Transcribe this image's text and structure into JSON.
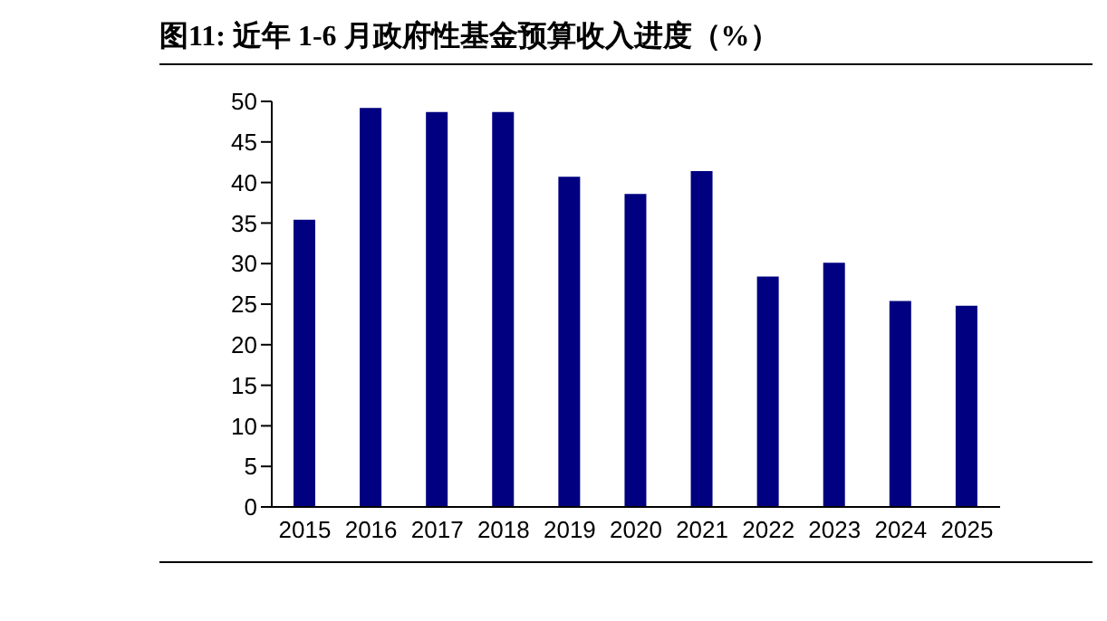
{
  "chart_data": {
    "type": "bar",
    "title": "图11:  近年 1-6 月政府性基金预算收入进度（%）",
    "categories": [
      "2015",
      "2016",
      "2017",
      "2018",
      "2019",
      "2020",
      "2021",
      "2022",
      "2023",
      "2024",
      "2025"
    ],
    "values": [
      35.4,
      49.2,
      48.7,
      48.7,
      40.7,
      38.6,
      41.4,
      28.4,
      30.1,
      25.4,
      24.8
    ],
    "color": "#000080",
    "ylim": [
      0,
      50
    ],
    "yticks": [
      0,
      5,
      10,
      15,
      20,
      25,
      30,
      35,
      40,
      45,
      50
    ],
    "grid": false,
    "legend": false
  }
}
